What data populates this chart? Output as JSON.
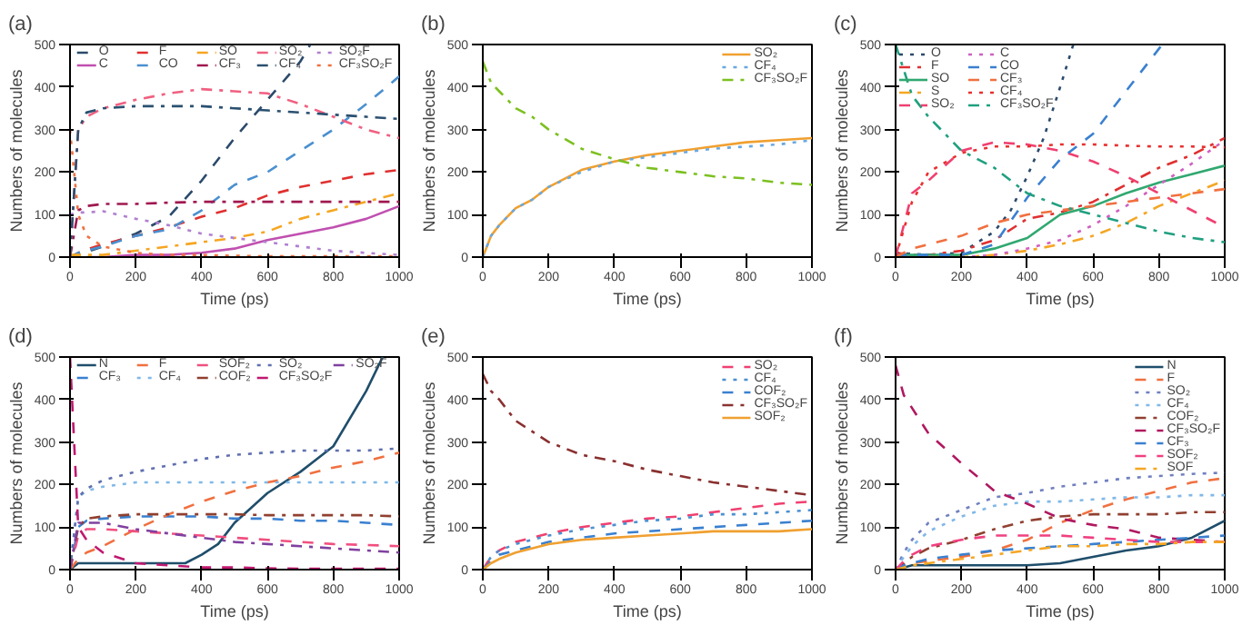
{
  "chart_data": [
    {
      "type": "line",
      "title": "(a)",
      "xlabel": "Time (ps)",
      "ylabel": "Numbers of molecules",
      "xlim": [
        0,
        1000
      ],
      "ylim": [
        0,
        500
      ],
      "xticks": [
        0,
        200,
        400,
        600,
        800,
        1000
      ],
      "yticks": [
        0,
        100,
        200,
        300,
        400,
        500
      ],
      "grid": false,
      "legend": "top",
      "x": [
        0,
        25,
        50,
        100,
        200,
        300,
        400,
        500,
        600,
        700,
        800,
        900,
        1000
      ],
      "series": [
        {
          "name": "O",
          "color": "#2b4a6b",
          "line_style": "dashed",
          "x": [
            0,
            25,
            50,
            100,
            200,
            300,
            400,
            500,
            600,
            700,
            730
          ],
          "values": [
            0,
            5,
            12,
            25,
            55,
            95,
            180,
            280,
            370,
            460,
            500
          ]
        },
        {
          "name": "C",
          "color": "#c050b0",
          "line_style": "solid",
          "values": [
            null,
            null,
            0,
            0,
            5,
            5,
            10,
            20,
            40,
            55,
            70,
            90,
            120
          ]
        },
        {
          "name": "F",
          "color": "#e03030",
          "line_style": "dashed",
          "values": [
            0,
            10,
            18,
            30,
            50,
            70,
            95,
            115,
            145,
            165,
            180,
            195,
            205
          ]
        },
        {
          "name": "CO",
          "color": "#4a90d0",
          "line_style": "dashed",
          "values": [
            0,
            10,
            15,
            25,
            50,
            65,
            110,
            170,
            200,
            250,
            300,
            360,
            425
          ]
        },
        {
          "name": "SO",
          "color": "#f5a623",
          "line_style": "dashdot",
          "values": [
            5,
            5,
            5,
            5,
            15,
            25,
            35,
            45,
            60,
            90,
            110,
            130,
            150
          ]
        },
        {
          "name": "CF₃",
          "color": "#a01850",
          "line_style": "dashdot",
          "values": [
            0,
            110,
            120,
            125,
            125,
            128,
            130,
            130,
            130,
            130,
            130,
            130,
            130
          ]
        },
        {
          "name": "SO₂",
          "color": "#f06080",
          "line_style": "dashdot",
          "values": [
            0,
            300,
            330,
            350,
            370,
            385,
            395,
            390,
            385,
            360,
            330,
            300,
            280
          ]
        },
        {
          "name": "CF₄",
          "color": "#2a5070",
          "line_style": "dashdot",
          "values": [
            0,
            300,
            340,
            350,
            355,
            355,
            355,
            350,
            345,
            340,
            335,
            330,
            325
          ]
        },
        {
          "name": "SO₂F",
          "color": "#b080d0",
          "line_style": "dotted",
          "values": [
            100,
            105,
            105,
            108,
            90,
            75,
            55,
            45,
            35,
            25,
            15,
            10,
            5
          ]
        },
        {
          "name": "CF₃SO₂F",
          "color": "#f07040",
          "line_style": "dotted",
          "values": [
            300,
            100,
            50,
            25,
            10,
            5,
            5,
            3,
            2,
            2,
            2,
            2,
            2
          ]
        }
      ]
    },
    {
      "type": "line",
      "title": "(b)",
      "xlabel": "Time (ps)",
      "ylabel": "Numbers of molecules",
      "xlim": [
        0,
        1000
      ],
      "ylim": [
        0,
        500
      ],
      "xticks": [
        0,
        200,
        400,
        600,
        800,
        1000
      ],
      "yticks": [
        0,
        100,
        200,
        300,
        400,
        500
      ],
      "grid": false,
      "legend": "top right",
      "x": [
        0,
        25,
        50,
        100,
        150,
        200,
        300,
        400,
        500,
        600,
        700,
        800,
        900,
        1000
      ],
      "series": [
        {
          "name": "SO₂",
          "color": "#f0a030",
          "line_style": "solid",
          "values": [
            0,
            50,
            75,
            115,
            135,
            165,
            205,
            225,
            240,
            250,
            260,
            270,
            275,
            280
          ]
        },
        {
          "name": "CF₄",
          "color": "#6aa8e0",
          "line_style": "dotted",
          "values": [
            0,
            50,
            75,
            115,
            135,
            165,
            200,
            225,
            235,
            245,
            255,
            260,
            265,
            275
          ]
        },
        {
          "name": "CF₃SO₂F",
          "color": "#7cc020",
          "line_style": "dashdot",
          "values": [
            460,
            410,
            390,
            350,
            330,
            300,
            255,
            230,
            210,
            200,
            190,
            185,
            175,
            170
          ]
        }
      ]
    },
    {
      "type": "line",
      "title": "(c)",
      "xlabel": "Time (ps)",
      "ylabel": "Numbers of molecules",
      "xlim": [
        0,
        1000
      ],
      "ylim": [
        0,
        500
      ],
      "xticks": [
        0,
        200,
        400,
        600,
        800,
        1000
      ],
      "yticks": [
        0,
        100,
        200,
        300,
        400,
        500
      ],
      "grid": false,
      "legend": "top left",
      "x": [
        0,
        50,
        100,
        200,
        300,
        400,
        500,
        600,
        700,
        800,
        900,
        1000
      ],
      "series": [
        {
          "name": "O",
          "color": "#2b4a6b",
          "line_style": "dotted",
          "x": [
            0,
            100,
            200,
            300,
            350,
            400,
            450,
            500,
            540
          ],
          "values": [
            10,
            5,
            10,
            60,
            110,
            190,
            280,
            400,
            500
          ]
        },
        {
          "name": "F",
          "color": "#e03030",
          "line_style": "dashdot",
          "values": [
            10,
            5,
            5,
            15,
            40,
            90,
            105,
            130,
            170,
            210,
            240,
            280
          ]
        },
        {
          "name": "SO",
          "color": "#30a870",
          "line_style": "solid",
          "values": [
            5,
            5,
            5,
            5,
            20,
            45,
            100,
            120,
            150,
            175,
            195,
            215
          ]
        },
        {
          "name": "S",
          "color": "#f5a623",
          "line_style": "dashdot",
          "values": [
            null,
            null,
            0,
            0,
            5,
            15,
            30,
            50,
            80,
            120,
            150,
            180
          ]
        },
        {
          "name": "SO₂",
          "color": "#f04070",
          "line_style": "dashed",
          "values": [
            0,
            150,
            180,
            250,
            270,
            265,
            250,
            225,
            190,
            150,
            110,
            70
          ]
        },
        {
          "name": "C",
          "color": "#d060c0",
          "line_style": "dotted",
          "values": [
            0,
            0,
            0,
            0,
            5,
            20,
            40,
            75,
            120,
            170,
            220,
            275
          ]
        },
        {
          "name": "CO",
          "color": "#3a80d0",
          "line_style": "dashed",
          "x": [
            0,
            100,
            200,
            300,
            400,
            500,
            600,
            700,
            810
          ],
          "values": [
            5,
            5,
            5,
            30,
            140,
            230,
            290,
            390,
            500
          ]
        },
        {
          "name": "CF₃",
          "color": "#f07040",
          "line_style": "dashed",
          "values": [
            0,
            20,
            30,
            50,
            80,
            100,
            110,
            120,
            130,
            140,
            150,
            160
          ]
        },
        {
          "name": "CF₄",
          "color": "#e83030",
          "line_style": "dotted",
          "values": [
            0,
            130,
            200,
            245,
            260,
            260,
            265,
            265,
            262,
            260,
            260,
            258
          ]
        },
        {
          "name": "CF₃SO₂F",
          "color": "#20a080",
          "line_style": "dashdot",
          "values": [
            500,
            380,
            330,
            250,
            210,
            150,
            120,
            100,
            80,
            60,
            45,
            35
          ]
        }
      ]
    },
    {
      "type": "line",
      "title": "(d)",
      "xlabel": "Time (ps)",
      "ylabel": "Numbers of molecules",
      "xlim": [
        0,
        1000
      ],
      "ylim": [
        0,
        500
      ],
      "xticks": [
        0,
        200,
        400,
        600,
        800,
        1000
      ],
      "yticks": [
        0,
        100,
        200,
        300,
        400,
        500
      ],
      "grid": false,
      "legend": "top",
      "x": [
        0,
        25,
        50,
        100,
        200,
        300,
        400,
        500,
        600,
        700,
        800,
        900,
        1000
      ],
      "series": [
        {
          "name": "N",
          "color": "#1f4e6b",
          "line_style": "solid",
          "x": [
            0,
            25,
            100,
            200,
            350,
            400,
            450,
            500,
            600,
            700,
            800,
            900,
            950
          ],
          "values": [
            0,
            15,
            15,
            15,
            15,
            35,
            60,
            110,
            180,
            230,
            290,
            420,
            500
          ]
        },
        {
          "name": "CF₃",
          "color": "#3a80d0",
          "line_style": "dashed",
          "values": [
            0,
            100,
            115,
            120,
            125,
            125,
            125,
            120,
            120,
            115,
            115,
            110,
            105
          ]
        },
        {
          "name": "F",
          "color": "#f07040",
          "line_style": "dashed",
          "values": [
            0,
            25,
            40,
            55,
            95,
            130,
            160,
            185,
            205,
            220,
            240,
            255,
            275
          ]
        },
        {
          "name": "CF₄",
          "color": "#80b8e8",
          "line_style": "dotted",
          "values": [
            0,
            170,
            185,
            195,
            205,
            205,
            205,
            205,
            205,
            205,
            205,
            205,
            205
          ]
        },
        {
          "name": "SOF₂",
          "color": "#f05080",
          "line_style": "dashed",
          "values": [
            0,
            80,
            95,
            95,
            90,
            85,
            80,
            75,
            70,
            65,
            60,
            58,
            55
          ]
        },
        {
          "name": "COF₂",
          "color": "#904030",
          "line_style": "dashdot",
          "values": [
            0,
            100,
            120,
            125,
            130,
            130,
            130,
            130,
            128,
            128,
            128,
            128,
            125
          ]
        },
        {
          "name": "SO₂",
          "color": "#6070b0",
          "line_style": "dotted",
          "values": [
            0,
            170,
            190,
            210,
            230,
            245,
            260,
            270,
            275,
            280,
            280,
            280,
            285
          ]
        },
        {
          "name": "CF₃SO₂F",
          "color": "#c01870",
          "line_style": "dashed",
          "values": [
            500,
            100,
            70,
            40,
            15,
            10,
            5,
            5,
            3,
            2,
            2,
            2,
            2
          ]
        },
        {
          "name": "SO₂F",
          "color": "#8040a0",
          "line_style": "dashdot",
          "values": [
            0,
            110,
            110,
            110,
            95,
            85,
            75,
            65,
            60,
            55,
            50,
            45,
            40
          ]
        }
      ]
    },
    {
      "type": "line",
      "title": "(e)",
      "xlabel": "Time (ps)",
      "ylabel": "Numbers of molecules",
      "xlim": [
        0,
        1000
      ],
      "ylim": [
        0,
        500
      ],
      "xticks": [
        0,
        200,
        400,
        600,
        800,
        1000
      ],
      "yticks": [
        0,
        100,
        200,
        300,
        400,
        500
      ],
      "grid": false,
      "legend": "top right",
      "x": [
        0,
        25,
        50,
        100,
        200,
        300,
        400,
        500,
        600,
        700,
        800,
        900,
        1000
      ],
      "series": [
        {
          "name": "SO₂",
          "color": "#f04070",
          "line_style": "dashed",
          "values": [
            0,
            30,
            45,
            65,
            85,
            100,
            110,
            120,
            125,
            135,
            145,
            155,
            160
          ]
        },
        {
          "name": "CF₄",
          "color": "#4a90d0",
          "line_style": "dotted",
          "values": [
            0,
            30,
            45,
            60,
            80,
            95,
            105,
            115,
            120,
            130,
            130,
            135,
            140
          ]
        },
        {
          "name": "COF₂",
          "color": "#3a80d0",
          "line_style": "dashed",
          "values": [
            0,
            20,
            35,
            45,
            65,
            75,
            85,
            90,
            95,
            100,
            105,
            110,
            115
          ]
        },
        {
          "name": "CF₃SO₂F",
          "color": "#8a3030",
          "line_style": "dashdot",
          "values": [
            460,
            420,
            400,
            350,
            300,
            270,
            255,
            235,
            220,
            205,
            195,
            185,
            175
          ]
        },
        {
          "name": "SOF₂",
          "color": "#f0a030",
          "line_style": "solid",
          "values": [
            0,
            15,
            25,
            40,
            60,
            70,
            75,
            80,
            85,
            90,
            90,
            90,
            95
          ]
        }
      ]
    },
    {
      "type": "line",
      "title": "(f)",
      "xlabel": "Time (ps)",
      "ylabel": "Numbers of molecules",
      "xlim": [
        0,
        1000
      ],
      "ylim": [
        0,
        500
      ],
      "xticks": [
        0,
        200,
        400,
        600,
        800,
        1000
      ],
      "yticks": [
        0,
        100,
        200,
        300,
        400,
        500
      ],
      "grid": false,
      "legend": "top right",
      "x": [
        0,
        25,
        50,
        100,
        200,
        300,
        400,
        500,
        600,
        700,
        800,
        900,
        1000
      ],
      "series": [
        {
          "name": "N",
          "color": "#1f4e6b",
          "line_style": "solid",
          "values": [
            0,
            5,
            10,
            10,
            10,
            10,
            10,
            15,
            30,
            45,
            55,
            75,
            115
          ]
        },
        {
          "name": "F",
          "color": "#f07040",
          "line_style": "dashed",
          "values": [
            0,
            10,
            15,
            20,
            30,
            45,
            70,
            110,
            140,
            165,
            185,
            205,
            215
          ]
        },
        {
          "name": "SO₂",
          "color": "#7080c0",
          "line_style": "dotted",
          "values": [
            0,
            40,
            70,
            110,
            140,
            170,
            180,
            195,
            205,
            215,
            220,
            225,
            228
          ]
        },
        {
          "name": "CF₄",
          "color": "#80b8e8",
          "line_style": "dotted",
          "values": [
            0,
            30,
            55,
            90,
            125,
            150,
            160,
            160,
            165,
            170,
            170,
            175,
            175
          ]
        },
        {
          "name": "COF₂",
          "color": "#904030",
          "line_style": "dashdot",
          "values": [
            0,
            15,
            30,
            50,
            70,
            95,
            115,
            125,
            130,
            130,
            130,
            135,
            135
          ]
        },
        {
          "name": "CF₃SO₂F",
          "color": "#b01860",
          "line_style": "dashed",
          "values": [
            480,
            410,
            380,
            320,
            250,
            185,
            155,
            120,
            105,
            95,
            75,
            70,
            65
          ]
        },
        {
          "name": "CF₃",
          "color": "#3a80d0",
          "line_style": "dashed",
          "values": [
            0,
            10,
            15,
            25,
            35,
            45,
            50,
            55,
            60,
            65,
            70,
            75,
            80
          ]
        },
        {
          "name": "SOF₂",
          "color": "#f04080",
          "line_style": "dashed",
          "values": [
            0,
            20,
            35,
            55,
            70,
            80,
            80,
            80,
            75,
            70,
            65,
            65,
            65
          ]
        },
        {
          "name": "SOF",
          "color": "#f5a623",
          "line_style": "dashdot",
          "values": [
            0,
            5,
            10,
            15,
            25,
            35,
            45,
            55,
            55,
            60,
            60,
            65,
            65
          ]
        }
      ]
    }
  ]
}
